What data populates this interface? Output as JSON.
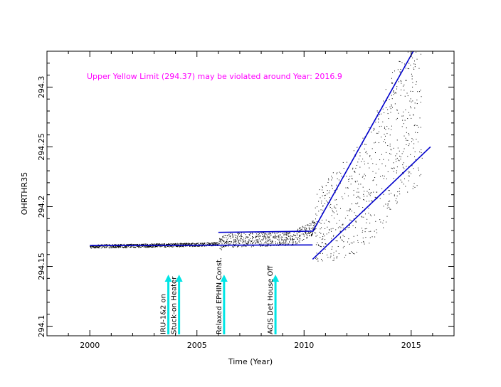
{
  "chart_data": {
    "type": "scatter",
    "title": "",
    "xlabel": "Time (Year)",
    "ylabel": "OHRTHR35",
    "xlim": [
      1998,
      2017
    ],
    "ylim": [
      294.092,
      294.33
    ],
    "x_ticks": [
      2000,
      2005,
      2010,
      2015
    ],
    "y_ticks": [
      294.1,
      294.15,
      294.2,
      294.25,
      294.3
    ],
    "grid": false,
    "legend": "none",
    "colors": {
      "points": "#000000",
      "trend": "#0000cc",
      "annotation": "#ff00ff",
      "event_arrow": "#00e5e5"
    },
    "annotation": "Upper Yellow  Limit (294.37) may be violated around Year: 2016.9",
    "series": [
      {
        "type": "band",
        "points": [
          {
            "x": 2000.0,
            "y": 294.167
          },
          {
            "x": 2002.0,
            "y": 294.1675
          },
          {
            "x": 2004.0,
            "y": 294.168
          },
          {
            "x": 2006.0,
            "y": 294.169
          },
          {
            "x": 2006.5,
            "y": 294.172
          },
          {
            "x": 2008.0,
            "y": 294.173
          },
          {
            "x": 2009.5,
            "y": 294.174
          },
          {
            "x": 2011.0,
            "y": 294.188
          },
          {
            "x": 2012.5,
            "y": 294.205
          },
          {
            "x": 2013.5,
            "y": 294.23
          },
          {
            "x": 2014.5,
            "y": 294.27
          },
          {
            "x": 2015.5,
            "y": 294.29
          }
        ]
      },
      {
        "type": "trend",
        "segments": [
          {
            "x": [
              2000.0,
              2010.4
            ],
            "y": [
              294.1675,
              294.168
            ]
          },
          {
            "x": [
              2006.0,
              2010.4
            ],
            "y": [
              294.1785,
              294.1795
            ]
          },
          {
            "x": [
              2010.4,
              2015.1
            ],
            "y": [
              294.179,
              294.33
            ]
          },
          {
            "x": [
              2010.4,
              2015.9
            ],
            "y": [
              294.156,
              294.25
            ]
          }
        ]
      }
    ],
    "events": [
      {
        "x": 2003.4,
        "label": "IRU-1&2 on"
      },
      {
        "x": 2003.9,
        "label": "Stuck-on Heater"
      },
      {
        "x": 2006.0,
        "label": "Relaxed EPHIN Const."
      },
      {
        "x": 2008.4,
        "label": "ACIS Det House Off"
      }
    ]
  }
}
